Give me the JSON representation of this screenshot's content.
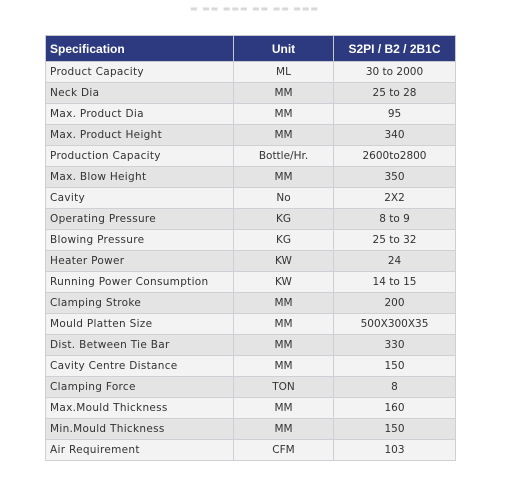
{
  "table": {
    "headers": {
      "specification": "Specification",
      "unit": "Unit",
      "model": "S2PI / B2 / 2B1C"
    },
    "rows": [
      {
        "spec": "Product Capacity",
        "unit": "ML",
        "value": "30 to 2000"
      },
      {
        "spec": "Neck Dia",
        "unit": "MM",
        "value": "25 to 28"
      },
      {
        "spec": "Max. Product Dia",
        "unit": "MM",
        "value": "95"
      },
      {
        "spec": "Max. Product Height",
        "unit": "MM",
        "value": "340"
      },
      {
        "spec": "Production Capacity",
        "unit": "Bottle/Hr.",
        "value": "2600to2800"
      },
      {
        "spec": "Max. Blow Height",
        "unit": "MM",
        "value": "350"
      },
      {
        "spec": "Cavity",
        "unit": "No",
        "value": "2X2"
      },
      {
        "spec": "Operating Pressure",
        "unit": "KG",
        "value": "8 to 9"
      },
      {
        "spec": "Blowing Pressure",
        "unit": "KG",
        "value": "25 to 32"
      },
      {
        "spec": "Heater Power",
        "unit": "KW",
        "value": "24"
      },
      {
        "spec": "Running Power Consumption",
        "unit": "KW",
        "value": "14 to 15"
      },
      {
        "spec": "Clamping Stroke",
        "unit": "MM",
        "value": "200"
      },
      {
        "spec": "Mould Platten Size",
        "unit": "MM",
        "value": "500X300X35"
      },
      {
        "spec": "Dist. Between  Tie Bar",
        "unit": "MM",
        "value": "330"
      },
      {
        "spec": "Cavity Centre Distance",
        "unit": "MM",
        "value": "150"
      },
      {
        "spec": "Clamping Force",
        "unit": "TON",
        "value": "8"
      },
      {
        "spec": "Max.Mould  Thickness",
        "unit": "MM",
        "value": "160"
      },
      {
        "spec": "Min.Mould  Thickness",
        "unit": "MM",
        "value": "150"
      },
      {
        "spec": "Air Requirement",
        "unit": "CFM",
        "value": "103"
      }
    ]
  },
  "colors": {
    "header_background": "#2d3a80",
    "header_text": "#ffffff",
    "row_light": "#f3f3f3",
    "row_dark": "#e4e4e4"
  }
}
